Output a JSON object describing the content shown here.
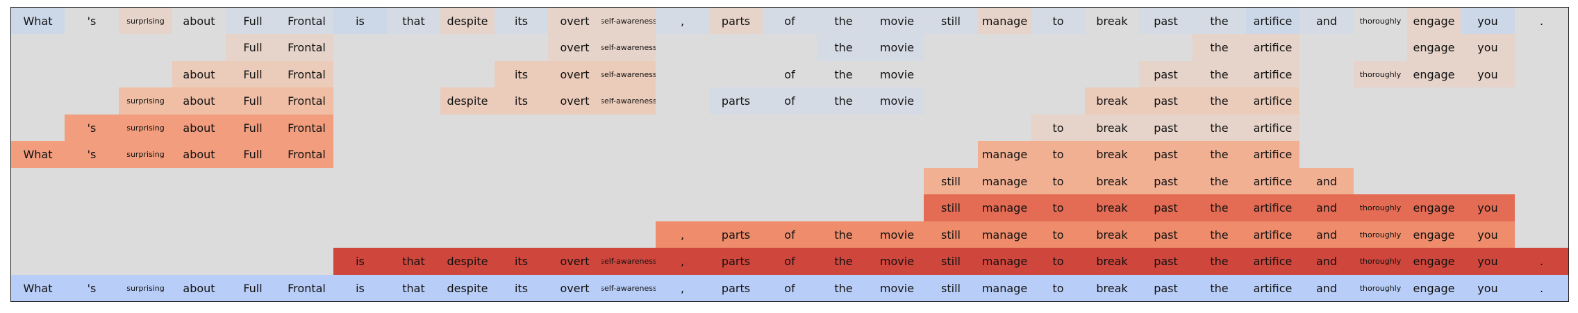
{
  "tokens": [
    "What",
    "'s",
    "surprising",
    "about",
    "Full",
    "Frontal",
    "is",
    "that",
    "despite",
    "its",
    "overt",
    "self-awareness",
    ",",
    "parts",
    "of",
    "the",
    "movie",
    "still",
    "manage",
    "to",
    "break",
    "past",
    "the",
    "artifice",
    "and",
    "thoroughly",
    "engage",
    "you",
    "."
  ],
  "small_tokens": [
    "surprising",
    "self-awareness",
    "thoroughly"
  ],
  "colors": {
    "background": "#dcdcdc",
    "base_row": "#b8cdf7",
    "palette": {
      "n1": "#ccd7e8",
      "n2": "#d5dbe4",
      "z": "#dcdcdc",
      "p1": "#e6d3c9",
      "p2": "#ebcbba",
      "p3": "#efbea5",
      "p4": "#f2b093",
      "p5": "#f19d7e",
      "p6": "#ee8c6b",
      "p7": "#e46c54",
      "p8": "#cf463c"
    }
  },
  "rows": [
    {
      "name": "row-0",
      "cells": [
        "n1",
        "z",
        "p1",
        "z",
        "n2",
        "n2",
        "n1",
        "n2",
        "p1",
        "n2",
        "p1",
        "p1",
        "n2",
        "p1",
        "n2",
        "n2",
        "n2",
        "n2",
        "p1",
        "n2",
        "z",
        "n2",
        "n2",
        "n1",
        "n2",
        "z",
        "p1",
        "n1",
        "z"
      ]
    },
    {
      "name": "row-1",
      "cells": [
        null,
        null,
        null,
        null,
        "p1",
        "p1",
        null,
        null,
        null,
        null,
        "p1",
        "p1",
        null,
        null,
        null,
        "n2",
        "n2",
        null,
        null,
        null,
        null,
        null,
        "p1",
        "p1",
        null,
        null,
        "p1",
        "p1",
        null
      ]
    },
    {
      "name": "row-2",
      "cells": [
        null,
        null,
        null,
        "p2",
        "p2",
        "p2",
        null,
        null,
        null,
        "p2",
        "p2",
        "p2",
        null,
        null,
        "z",
        "z",
        "z",
        null,
        null,
        null,
        null,
        "p1",
        "p1",
        "p1",
        null,
        "p1",
        "p1",
        "p1",
        null
      ]
    },
    {
      "name": "row-3",
      "cells": [
        null,
        null,
        "p3",
        "p3",
        "p3",
        "p3",
        null,
        null,
        "p2",
        "p2",
        "p2",
        "p2",
        null,
        "n2",
        "n2",
        "n2",
        "n2",
        null,
        null,
        null,
        "p2",
        "p2",
        "p2",
        "p2",
        null,
        null,
        null,
        null,
        null
      ]
    },
    {
      "name": "row-4",
      "cells": [
        null,
        "p5",
        "p5",
        "p5",
        "p5",
        "p5",
        null,
        null,
        null,
        null,
        null,
        null,
        null,
        null,
        null,
        null,
        null,
        null,
        null,
        "p1",
        "p1",
        "p1",
        "p1",
        "p1",
        null,
        null,
        null,
        null,
        null
      ]
    },
    {
      "name": "row-5",
      "cells": [
        "p5",
        "p5",
        "p5",
        "p5",
        "p5",
        "p5",
        null,
        null,
        null,
        null,
        null,
        null,
        null,
        null,
        null,
        null,
        null,
        null,
        "p4",
        "p4",
        "p4",
        "p4",
        "p4",
        "p4",
        null,
        null,
        null,
        null,
        null
      ]
    },
    {
      "name": "row-6",
      "cells": [
        null,
        null,
        null,
        null,
        null,
        null,
        null,
        null,
        null,
        null,
        null,
        null,
        null,
        null,
        null,
        null,
        null,
        "p4",
        "p4",
        "p4",
        "p4",
        "p4",
        "p4",
        "p4",
        "p4",
        null,
        null,
        null,
        null
      ]
    },
    {
      "name": "row-7",
      "cells": [
        null,
        null,
        null,
        null,
        null,
        null,
        null,
        null,
        null,
        null,
        null,
        null,
        null,
        null,
        null,
        null,
        null,
        "p7",
        "p7",
        "p7",
        "p7",
        "p7",
        "p7",
        "p7",
        "p7",
        "p7",
        "p7",
        "p7",
        null
      ]
    },
    {
      "name": "row-8",
      "cells": [
        null,
        null,
        null,
        null,
        null,
        null,
        null,
        null,
        null,
        null,
        null,
        null,
        "p6",
        "p6",
        "p6",
        "p6",
        "p6",
        "p6",
        "p6",
        "p6",
        "p6",
        "p6",
        "p6",
        "p6",
        "p6",
        "p6",
        "p6",
        "p6",
        null
      ]
    },
    {
      "name": "row-9",
      "cells": [
        null,
        null,
        null,
        null,
        null,
        null,
        "p8",
        "p8",
        "p8",
        "p8",
        "p8",
        "p8",
        "p8",
        "p8",
        "p8",
        "p8",
        "p8",
        "p8",
        "p8",
        "p8",
        "p8",
        "p8",
        "p8",
        "p8",
        "p8",
        "p8",
        "p8",
        "p8",
        "p8"
      ]
    },
    {
      "name": "row-base",
      "cells": [
        "base",
        "base",
        "base",
        "base",
        "base",
        "base",
        "base",
        "base",
        "base",
        "base",
        "base",
        "base",
        "base",
        "base",
        "base",
        "base",
        "base",
        "base",
        "base",
        "base",
        "base",
        "base",
        "base",
        "base",
        "base",
        "base",
        "base",
        "base",
        "base"
      ]
    }
  ]
}
